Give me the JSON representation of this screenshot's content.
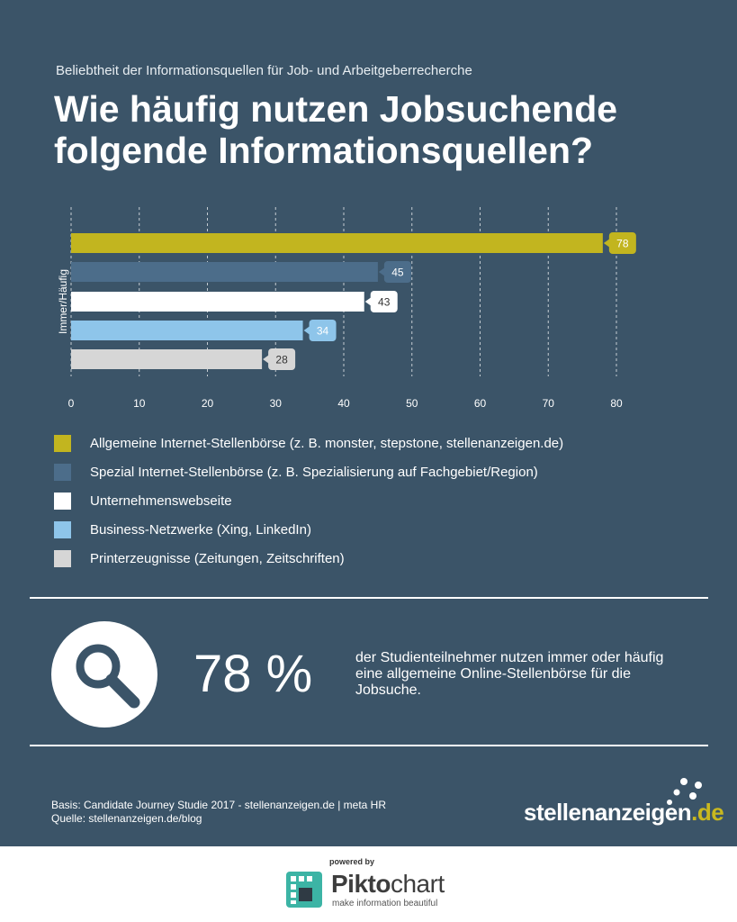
{
  "subtitle": "Beliebtheit der Informationsquellen für Job- und Arbeitgeberrecherche",
  "title": {
    "line1": "Wie häufig nutzen Jobsuchende",
    "line2": "folgende Informationsquellen?"
  },
  "chart_data": {
    "type": "bar",
    "orientation": "horizontal",
    "ylabel": "Immer/Häufig",
    "xlim": [
      0,
      80
    ],
    "xticks": [
      0,
      10,
      20,
      30,
      40,
      50,
      60,
      70,
      80
    ],
    "grid": true,
    "series": [
      {
        "name": "Allgemeine Internet-Stellenbörse (z. B. monster, stepstone, stellenanzeigen.de)",
        "value": 78,
        "label": "78",
        "color": "#c2b51f",
        "label_color": "#ffffff"
      },
      {
        "name": "Spezial Internet-Stellenbörse (z. B. Spezialisierung auf Fachgebiet/Region)",
        "value": 45,
        "label": "45",
        "color": "#4c6d8a",
        "label_color": "#ffffff"
      },
      {
        "name": "Unternehmenswebseite",
        "value": 43,
        "label": "43",
        "color": "#ffffff",
        "label_color": "#333333"
      },
      {
        "name": "Business-Netzwerke (Xing, LinkedIn)",
        "value": 34,
        "label": "34",
        "color": "#8ec5ea",
        "label_color": "#ffffff"
      },
      {
        "name": "Printerzeugnisse (Zeitungen, Zeitschriften)",
        "value": 28,
        "label": "28",
        "color": "#d6d6d6",
        "label_color": "#333333"
      }
    ]
  },
  "legend": [
    {
      "label": "Allgemeine Internet-Stellenbörse (z. B. monster, stepstone, stellenanzeigen.de)",
      "color": "#c2b51f"
    },
    {
      "label": "Spezial Internet-Stellenbörse (z. B. Spezialisierung auf Fachgebiet/Region)",
      "color": "#4c6d8a"
    },
    {
      "label": "Unternehmenswebseite",
      "color": "#ffffff"
    },
    {
      "label": "Business-Netzwerke (Xing, LinkedIn)",
      "color": "#8ec5ea"
    },
    {
      "label": "Printerzeugnisse (Zeitungen, Zeitschriften)",
      "color": "#d6d6d6"
    }
  ],
  "stat": {
    "value": "78 %",
    "text": "der Studienteilnehmer nutzen immer oder häufig eine allgemeine Online-Stellenbörse für die Jobsuche.",
    "icon": "magnifier-icon"
  },
  "footer": {
    "basis": "Basis: Candidate Journey Studie 2017 - stellenanzeigen.de | meta HR",
    "quelle": "Quelle: stellenanzeigen.de/blog",
    "brand_name": "stellenanzeigen",
    "brand_tld": ".de"
  },
  "credit": {
    "powered": "powered by",
    "brand_bold": "Pikto",
    "brand_light": "chart",
    "tagline": "make information beautiful"
  },
  "colors": {
    "background": "#3b5468",
    "accent": "#c9b81f",
    "white": "#ffffff"
  }
}
